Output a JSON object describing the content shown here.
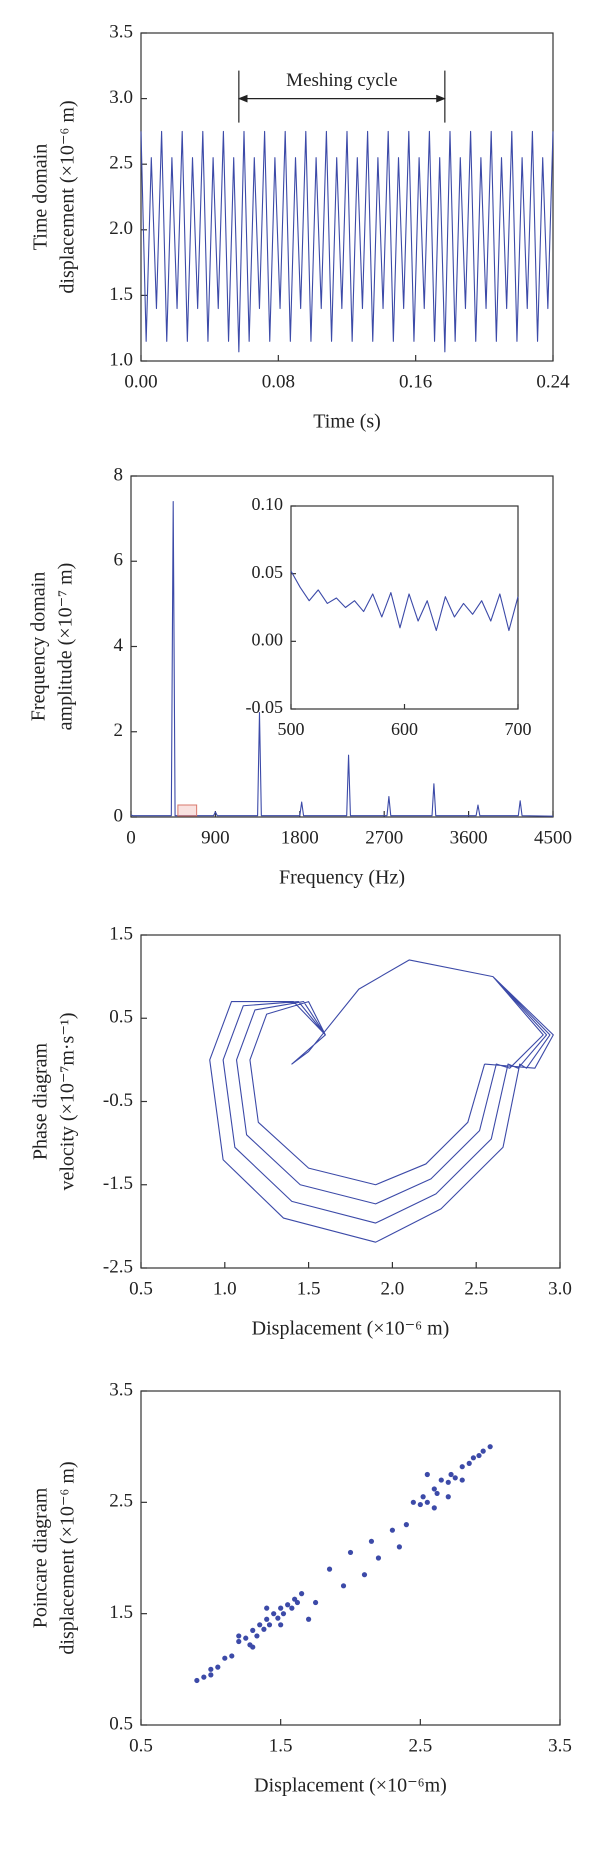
{
  "chart_data": [
    {
      "type": "line",
      "color": "#3c4aa8",
      "xlabel": "Time (s)",
      "ylabel": [
        "Time domain",
        "displacement (×10⁻⁶ m)"
      ],
      "xlim": [
        0,
        0.24
      ],
      "xticks": [
        {
          "value": 0,
          "label": "0.00"
        },
        0.08,
        0.16,
        0.24
      ],
      "ylim": [
        1.0,
        3.5
      ],
      "yticks": [
        {
          "value": 1.0,
          "label": "1.0"
        },
        1.5,
        {
          "value": 2.0,
          "label": "2.0"
        },
        2.5,
        {
          "value": 3.0,
          "label": "3.0"
        },
        3.5
      ],
      "annotation": {
        "text": "Meshing cycle",
        "x": [
          0.057,
          0.177
        ],
        "y": 3.0
      },
      "x": [
        0,
        0.003,
        0.006,
        0.009,
        0.012,
        0.015,
        0.018,
        0.021,
        0.024,
        0.027,
        0.03,
        0.033,
        0.036,
        0.039,
        0.042,
        0.045,
        0.048,
        0.051,
        0.054,
        0.057,
        0.06,
        0.063,
        0.066,
        0.069,
        0.072,
        0.075,
        0.078,
        0.081,
        0.084,
        0.087,
        0.09,
        0.093,
        0.096,
        0.099,
        0.102,
        0.105,
        0.108,
        0.111,
        0.114,
        0.117,
        0.12,
        0.123,
        0.126,
        0.129,
        0.132,
        0.135,
        0.138,
        0.141,
        0.144,
        0.147,
        0.15,
        0.153,
        0.156,
        0.159,
        0.162,
        0.165,
        0.168,
        0.171,
        0.174,
        0.177,
        0.18,
        0.183,
        0.186,
        0.189,
        0.192,
        0.195,
        0.198,
        0.201,
        0.204,
        0.207,
        0.21,
        0.213,
        0.216,
        0.219,
        0.222,
        0.225,
        0.228,
        0.231,
        0.234,
        0.237,
        0.24
      ],
      "values": [
        2.75,
        1.15,
        2.55,
        1.4,
        2.75,
        1.15,
        2.55,
        1.4,
        2.75,
        1.15,
        2.55,
        1.4,
        2.75,
        1.15,
        2.55,
        1.4,
        2.75,
        1.15,
        2.55,
        1.07,
        2.75,
        1.15,
        2.55,
        1.4,
        2.75,
        1.15,
        2.55,
        1.4,
        2.75,
        1.15,
        2.55,
        1.4,
        2.75,
        1.15,
        2.55,
        1.4,
        2.75,
        1.15,
        2.55,
        1.4,
        2.75,
        1.15,
        2.55,
        1.4,
        2.75,
        1.15,
        2.55,
        1.4,
        2.75,
        1.15,
        2.55,
        1.4,
        2.75,
        1.15,
        2.55,
        1.4,
        2.75,
        1.15,
        2.55,
        1.07,
        2.75,
        1.15,
        2.55,
        1.4,
        2.75,
        1.15,
        2.55,
        1.4,
        2.75,
        1.15,
        2.55,
        1.4,
        2.75,
        1.15,
        2.55,
        1.4,
        2.75,
        1.15,
        2.55,
        1.4,
        2.75
      ]
    },
    {
      "type": "line",
      "color": "#3c4aa8",
      "xlabel": "Frequency (Hz)",
      "ylabel": [
        "Frequency domain",
        "amplitude (×10⁻⁷ m)"
      ],
      "xlim": [
        0,
        4500
      ],
      "xticks": [
        0,
        900,
        1800,
        2700,
        3600,
        4500
      ],
      "ylim": [
        0,
        8
      ],
      "yticks": [
        0,
        2,
        4,
        6,
        8
      ],
      "x": [
        0,
        20,
        430,
        450,
        470,
        880,
        900,
        920,
        1350,
        1370,
        1390,
        1800,
        1820,
        1840,
        2300,
        2320,
        2340,
        2730,
        2750,
        2770,
        3210,
        3230,
        3250,
        3680,
        3700,
        3720,
        4130,
        4150,
        4170,
        4500
      ],
      "values": [
        0.05,
        0.03,
        0.03,
        7.4,
        0.03,
        0.03,
        0.12,
        0.03,
        0.03,
        2.45,
        0.03,
        0.03,
        0.35,
        0.03,
        0.03,
        1.45,
        0.03,
        0.03,
        0.48,
        0.03,
        0.03,
        0.78,
        0.03,
        0.03,
        0.28,
        0.03,
        0.03,
        0.38,
        0.03,
        0.02
      ],
      "inset": {
        "xlim": [
          500,
          700
        ],
        "xticks": [
          500,
          600,
          700
        ],
        "ylim": [
          -0.05,
          0.1
        ],
        "yticks": [
          -0.05,
          {
            "value": 0,
            "label": "0.00"
          },
          0.05,
          {
            "value": 0.1,
            "label": "0.10"
          }
        ],
        "x": [
          500,
          508,
          516,
          524,
          532,
          540,
          548,
          556,
          564,
          572,
          580,
          588,
          596,
          604,
          612,
          620,
          628,
          636,
          644,
          652,
          660,
          668,
          676,
          684,
          692,
          700
        ],
        "values": [
          0.052,
          0.04,
          0.03,
          0.038,
          0.028,
          0.032,
          0.025,
          0.03,
          0.022,
          0.035,
          0.018,
          0.036,
          0.01,
          0.035,
          0.015,
          0.03,
          0.008,
          0.033,
          0.018,
          0.028,
          0.02,
          0.03,
          0.015,
          0.035,
          0.008,
          0.033
        ]
      }
    },
    {
      "type": "line",
      "color": "#3c4aa8",
      "xlabel": "Displacement (×10⁻⁶ m)",
      "ylabel": [
        "Phase diagram",
        "velocity (×10⁻⁷m·s⁻¹)"
      ],
      "xlim": [
        0.5,
        3.0
      ],
      "xticks": [
        0.5,
        {
          "value": 1.0,
          "label": "1.0"
        },
        1.5,
        {
          "value": 2.0,
          "label": "2.0"
        },
        2.5,
        {
          "value": 3.0,
          "label": "3.0"
        }
      ],
      "ylim": [
        -2.5,
        1.5
      ],
      "yticks": [
        -2.5,
        -1.5,
        -0.5,
        0.5,
        1.5
      ],
      "x": [
        2.55,
        2.45,
        2.2,
        1.9,
        1.5,
        1.2,
        1.15,
        1.25,
        1.5,
        1.6,
        1.4,
        1.5,
        1.8,
        2.1,
        2.6,
        2.9,
        2.7,
        2.62,
        2.52,
        2.23,
        1.9,
        1.45,
        1.13,
        1.07,
        1.18,
        1.47,
        1.6,
        1.4,
        1.5,
        1.8,
        2.1,
        2.6,
        2.92,
        2.75,
        2.69,
        2.59,
        2.26,
        1.9,
        1.4,
        1.06,
        0.99,
        1.11,
        1.44,
        1.6,
        1.4,
        1.5,
        1.8,
        2.1,
        2.6,
        2.94,
        2.8,
        2.76,
        2.66,
        2.29,
        1.9,
        1.35,
        0.99,
        0.91,
        1.04,
        1.41,
        1.6,
        1.4,
        1.5,
        1.8,
        2.1,
        2.6,
        2.96,
        2.85,
        2.55
      ],
      "values": [
        -0.05,
        -0.75,
        -1.25,
        -1.5,
        -1.3,
        -0.75,
        0,
        0.55,
        0.7,
        0.3,
        -0.05,
        0.1,
        0.85,
        1.2,
        1.0,
        0.3,
        -0.1,
        -0.05,
        -0.85,
        -1.43,
        -1.73,
        -1.5,
        -0.9,
        0,
        0.6,
        0.7,
        0.3,
        -0.05,
        0.1,
        0.85,
        1.2,
        1.0,
        0.3,
        -0.1,
        -0.05,
        -0.95,
        -1.61,
        -1.96,
        -1.7,
        -1.05,
        0,
        0.65,
        0.7,
        0.3,
        -0.05,
        0.1,
        0.85,
        1.2,
        1.0,
        0.3,
        -0.1,
        -0.05,
        -1.05,
        -1.79,
        -2.19,
        -1.9,
        -1.2,
        0,
        0.7,
        0.7,
        0.3,
        -0.05,
        0.1,
        0.85,
        1.2,
        1.0,
        0.3,
        -0.1,
        -0.05
      ]
    },
    {
      "type": "scatter",
      "color": "#3c4aa8",
      "xlabel": "Displacement (×10⁻⁶m)",
      "ylabel": [
        "Poincare diagram",
        "displacement (×10⁻⁶ m)"
      ],
      "xlim": [
        0.5,
        3.5
      ],
      "xticks": [
        0.5,
        1.5,
        2.5,
        3.5
      ],
      "ylim": [
        0.5,
        3.5
      ],
      "yticks": [
        0.5,
        1.5,
        2.5,
        3.5
      ],
      "x": [
        0.9,
        0.95,
        1.0,
        1.05,
        1.1,
        1.15,
        1.2,
        1.25,
        1.28,
        1.3,
        1.33,
        1.35,
        1.38,
        1.4,
        1.42,
        1.45,
        1.48,
        1.5,
        1.52,
        1.55,
        1.58,
        1.6,
        1.62,
        1.65,
        1.3,
        1.5,
        1.7,
        1.75,
        1.85,
        1.95,
        2.0,
        2.1,
        2.15,
        2.2,
        2.3,
        2.35,
        2.4,
        2.45,
        2.5,
        2.52,
        2.55,
        2.6,
        2.62,
        2.65,
        2.7,
        2.72,
        2.75,
        2.8,
        2.85,
        2.88,
        2.92,
        2.95,
        3.0,
        2.6,
        2.7,
        2.8,
        2.55,
        1.2,
        1.4,
        1.0
      ],
      "values": [
        0.9,
        0.93,
        1.0,
        1.02,
        1.1,
        1.12,
        1.25,
        1.28,
        1.22,
        1.35,
        1.3,
        1.4,
        1.36,
        1.45,
        1.4,
        1.5,
        1.46,
        1.55,
        1.5,
        1.58,
        1.55,
        1.63,
        1.6,
        1.68,
        1.2,
        1.4,
        1.45,
        1.6,
        1.9,
        1.75,
        2.05,
        1.85,
        2.15,
        2.0,
        2.25,
        2.1,
        2.3,
        2.5,
        2.48,
        2.55,
        2.5,
        2.62,
        2.58,
        2.7,
        2.68,
        2.75,
        2.72,
        2.82,
        2.85,
        2.9,
        2.92,
        2.96,
        3.0,
        2.45,
        2.55,
        2.7,
        2.75,
        1.3,
        1.55,
        0.95
      ]
    }
  ]
}
